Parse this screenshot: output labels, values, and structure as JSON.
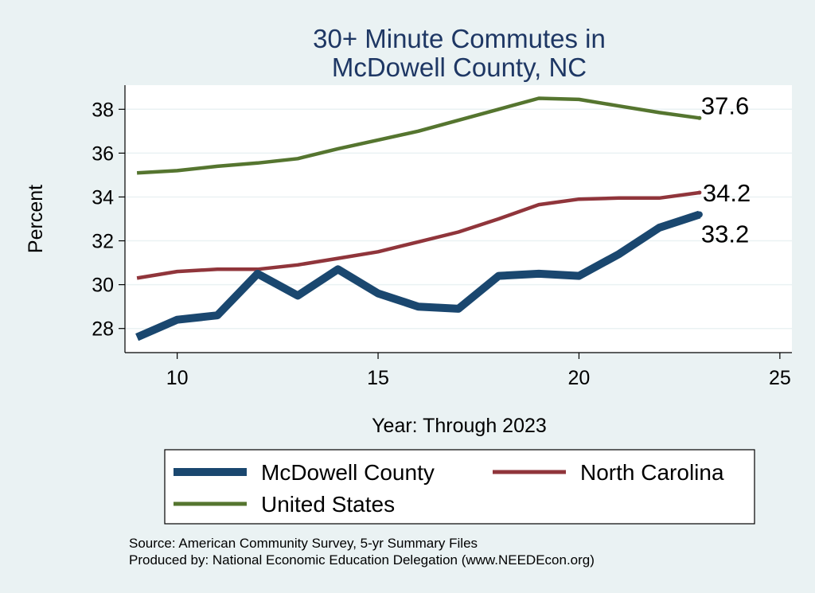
{
  "chart_data": {
    "type": "line",
    "title": [
      "30+ Minute Commutes in",
      "McDowell County, NC"
    ],
    "xlabel": "Year: Through 2023",
    "ylabel": "Percent",
    "xlim": [
      8.7,
      25.3
    ],
    "ylim": [
      26.9,
      39.1
    ],
    "xticks": [
      10,
      15,
      20,
      25
    ],
    "yticks": [
      28,
      30,
      32,
      34,
      36,
      38
    ],
    "grid": true,
    "legend_position": "bottom",
    "x": [
      9,
      10,
      11,
      12,
      13,
      14,
      15,
      16,
      17,
      18,
      19,
      20,
      21,
      22,
      23
    ],
    "series": [
      {
        "name": "McDowell County",
        "color": "#1a476f",
        "values": [
          27.6,
          28.4,
          28.6,
          30.5,
          29.5,
          30.7,
          29.6,
          29.0,
          28.9,
          30.4,
          30.5,
          30.4,
          31.4,
          32.6,
          33.2
        ],
        "end_label": "33.2"
      },
      {
        "name": "North Carolina",
        "color": "#90353b",
        "values": [
          30.3,
          30.6,
          30.7,
          30.7,
          30.9,
          31.2,
          31.5,
          31.95,
          32.4,
          33.0,
          33.65,
          33.9,
          33.95,
          33.95,
          34.2
        ],
        "end_label": "34.2"
      },
      {
        "name": "United States",
        "color": "#55752f",
        "values": [
          35.1,
          35.2,
          35.4,
          35.55,
          35.75,
          36.2,
          36.6,
          37.0,
          37.5,
          38.0,
          38.5,
          38.45,
          38.15,
          37.85,
          37.6
        ],
        "end_label": "37.6"
      }
    ]
  },
  "notes": {
    "source": "Source: American Community Survey, 5-yr Summary Files",
    "produced": "Produced by: National Economic Education Delegation (www.NEEDEcon.org)"
  }
}
